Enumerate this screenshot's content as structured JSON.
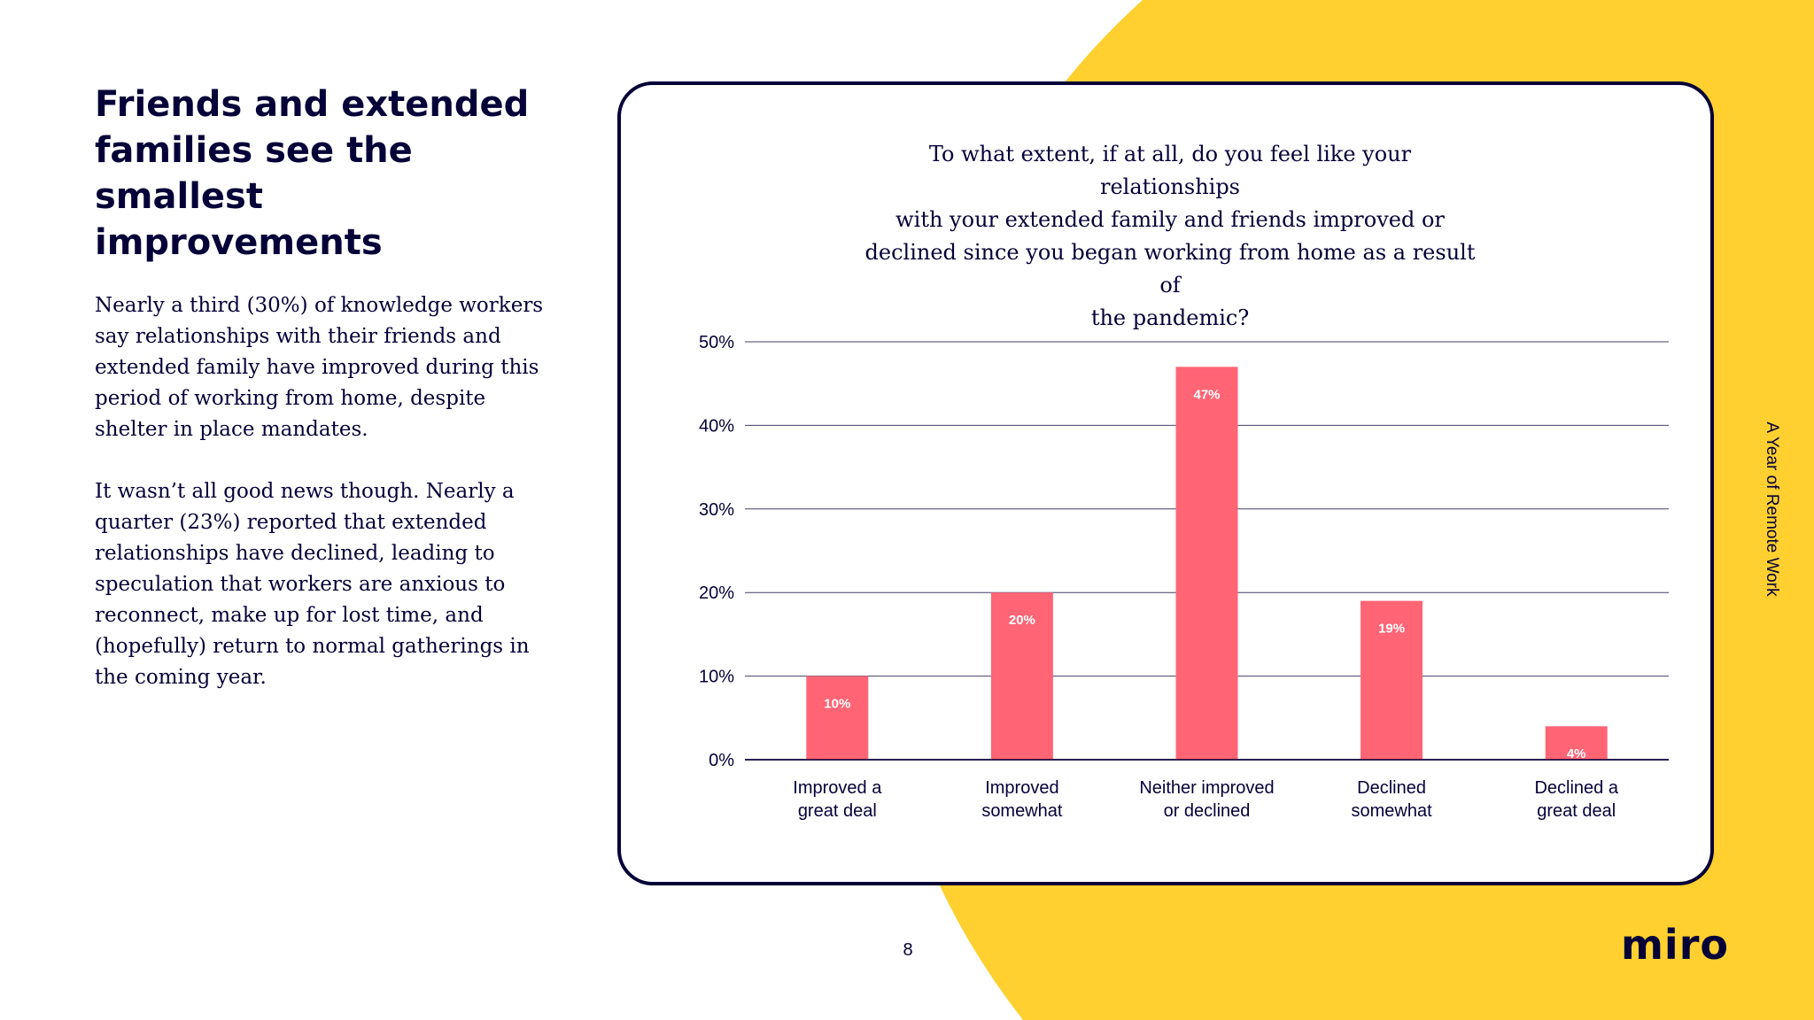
{
  "left": {
    "heading_lines": [
      "Friends and extended",
      "families see the",
      "smallest improvements"
    ],
    "paragraph1_lines": [
      "Nearly a third (30%) of knowledge workers",
      "say relationships with their friends and",
      "extended family have improved during this",
      "period of working from home, despite",
      "shelter in place mandates."
    ],
    "paragraph2_lines": [
      "It wasn’t all good news though. Nearly a",
      "quarter (23%) reported that extended",
      "relationships have declined, leading to",
      "speculation that workers are anxious to",
      "reconnect, make up for lost time, and",
      "(hopefully) return to normal gatherings in",
      "the coming year."
    ]
  },
  "chart_data": {
    "type": "bar",
    "title_lines": [
      "To what extent, if at all, do you feel like your relationships",
      "with your extended family and friends improved or",
      "declined since you began working from home as a result of",
      "the pandemic?"
    ],
    "categories": [
      [
        "Improved a",
        "great deal"
      ],
      [
        "Improved",
        "somewhat"
      ],
      [
        "Neither improved",
        "or declined"
      ],
      [
        "Declined",
        "somewhat"
      ],
      [
        "Declined a",
        "great deal"
      ]
    ],
    "values": [
      10,
      20,
      47,
      19,
      4
    ],
    "data_labels": [
      "10%",
      "20%",
      "47%",
      "19%",
      "4%"
    ],
    "y_ticks": [
      0,
      10,
      20,
      30,
      40,
      50
    ],
    "y_tick_labels": [
      "0%",
      "10%",
      "20%",
      "30%",
      "40%",
      "50%"
    ],
    "ylim": [
      0,
      50
    ],
    "grid": true,
    "bar_color": "#FF6575"
  },
  "colors": {
    "accent_yellow": "#FFD02F",
    "navy": "#050038"
  },
  "side_label": "A Year of Remote Work",
  "page_number": "8",
  "logo": "miro"
}
